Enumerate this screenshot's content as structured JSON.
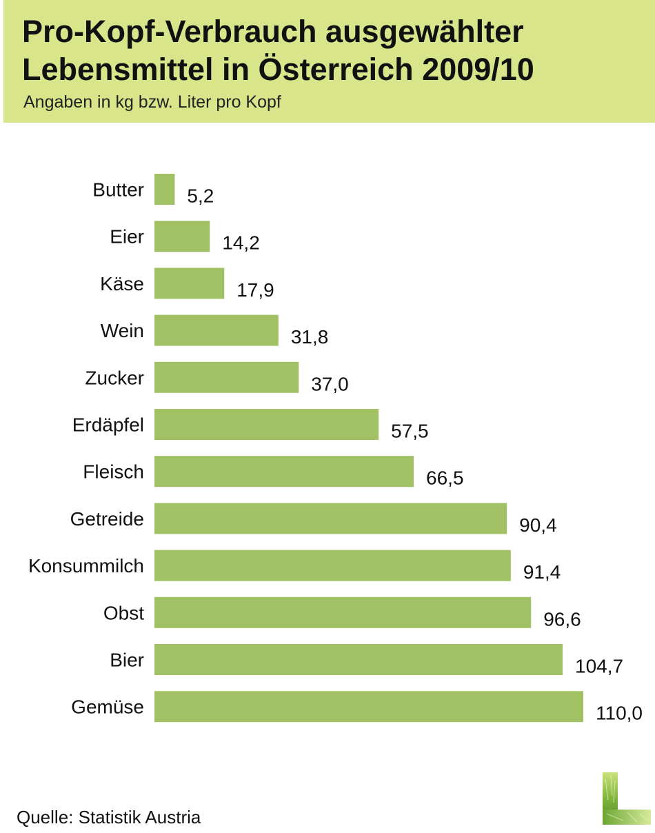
{
  "header": {
    "title_line1": "Pro-Kopf-Verbrauch ausgewählter",
    "title_line2": "Lebensmittel in Österreich 2009/10",
    "subtitle": "Angaben in kg bzw. Liter pro Kopf"
  },
  "source": "Quelle: Statistik Austria",
  "colors": {
    "header_background": "#d9e58a",
    "bar": "#a2c164"
  },
  "logo": {
    "icon": "grass-l-logo"
  },
  "chart_data": {
    "type": "bar",
    "orientation": "horizontal",
    "title": "Pro-Kopf-Verbrauch ausgewählter Lebensmittel in Österreich 2009/10",
    "subtitle": "Angaben in kg bzw. Liter pro Kopf",
    "categories": [
      "Butter",
      "Eier",
      "Käse",
      "Wein",
      "Zucker",
      "Erdäpfel",
      "Fleisch",
      "Getreide",
      "Konsummilch",
      "Obst",
      "Bier",
      "Gemüse"
    ],
    "values": [
      5.2,
      14.2,
      17.9,
      31.8,
      37.0,
      57.5,
      66.5,
      90.4,
      91.4,
      96.6,
      104.7,
      110.0
    ],
    "value_labels": [
      "5,2",
      "14,2",
      "17,9",
      "31,8",
      "37,0",
      "57,5",
      "66,5",
      "90,4",
      "91,4",
      "96,6",
      "104,7",
      "110,0"
    ],
    "xlim": [
      0,
      110.0
    ],
    "grid": false,
    "legend": "none"
  }
}
